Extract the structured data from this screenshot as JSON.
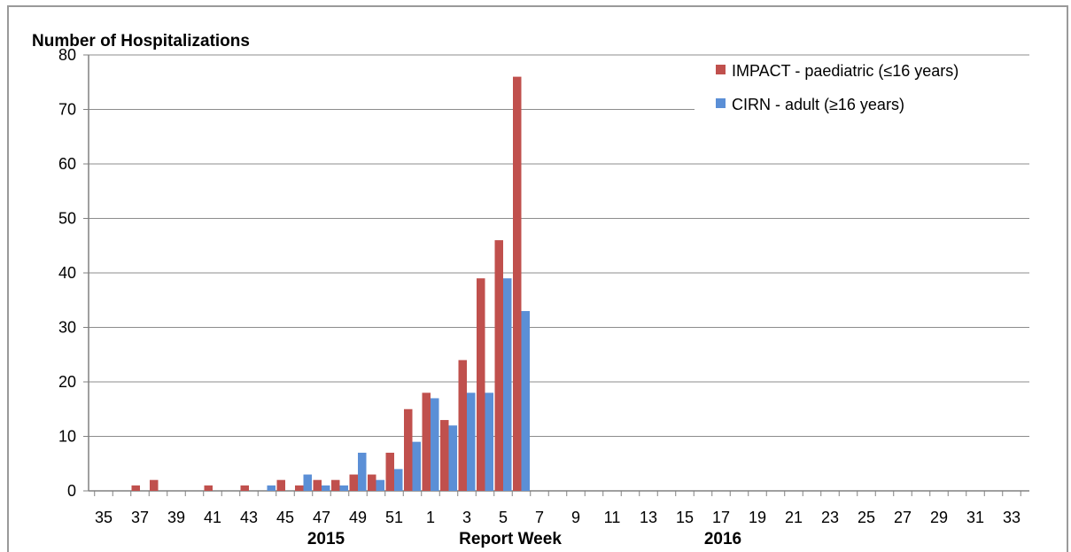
{
  "chart_data": {
    "type": "bar",
    "title": "",
    "ylabel": "Number of Hospitalizations",
    "xlabel": "Report Week",
    "year_labels": [
      "2015",
      "2016"
    ],
    "ylim": [
      0,
      80
    ],
    "yticks": [
      0,
      10,
      20,
      30,
      40,
      50,
      60,
      70,
      80
    ],
    "grid": "horizontal",
    "legend_position": "top-right",
    "categories": [
      "35",
      "36",
      "37",
      "38",
      "39",
      "40",
      "41",
      "42",
      "43",
      "44",
      "45",
      "46",
      "47",
      "48",
      "49",
      "50",
      "51",
      "52",
      "1",
      "2",
      "3",
      "4",
      "5",
      "6",
      "7",
      "8",
      "9",
      "10",
      "11",
      "12",
      "13",
      "14",
      "15",
      "16",
      "17",
      "18",
      "19",
      "20",
      "21",
      "22",
      "23",
      "24",
      "25",
      "26",
      "27",
      "28",
      "29",
      "30",
      "31",
      "32",
      "33",
      "34"
    ],
    "tick_labels": [
      "35",
      "37",
      "39",
      "41",
      "43",
      "45",
      "47",
      "49",
      "51",
      "1",
      "3",
      "5",
      "7",
      "9",
      "11",
      "13",
      "15",
      "17",
      "19",
      "21",
      "23",
      "25",
      "27",
      "29",
      "31",
      "33"
    ],
    "series": [
      {
        "name": "IMPACT - paediatric (≤16 years)",
        "color": "#c0504d",
        "values": [
          0,
          0,
          1,
          2,
          0,
          0,
          1,
          0,
          1,
          0,
          2,
          1,
          2,
          2,
          3,
          3,
          7,
          15,
          18,
          13,
          24,
          39,
          46,
          76,
          0,
          0,
          0,
          0,
          0,
          0,
          0,
          0,
          0,
          0,
          0,
          0,
          0,
          0,
          0,
          0,
          0,
          0,
          0,
          0,
          0,
          0,
          0,
          0,
          0,
          0,
          0,
          0
        ]
      },
      {
        "name": "CIRN - adult (≥16 years)",
        "color": "#5b8fd6",
        "values": [
          0,
          0,
          0,
          0,
          0,
          0,
          0,
          0,
          0,
          1,
          0,
          3,
          1,
          1,
          7,
          2,
          4,
          9,
          17,
          12,
          18,
          18,
          39,
          33,
          0,
          0,
          0,
          0,
          0,
          0,
          0,
          0,
          0,
          0,
          0,
          0,
          0,
          0,
          0,
          0,
          0,
          0,
          0,
          0,
          0,
          0,
          0,
          0,
          0,
          0,
          0,
          0
        ]
      }
    ]
  }
}
